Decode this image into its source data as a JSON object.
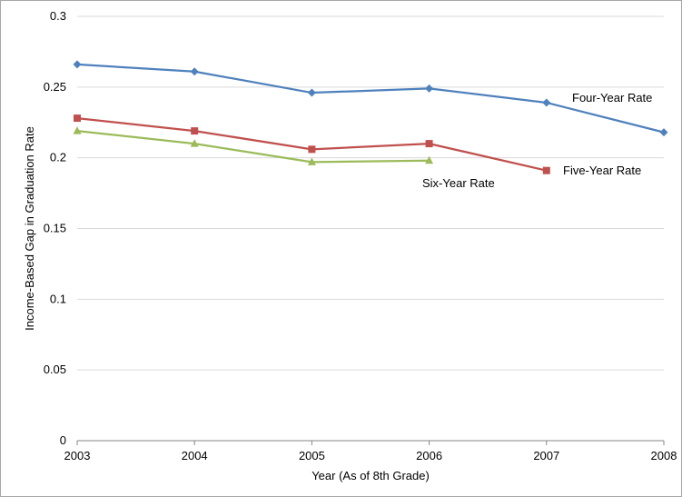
{
  "chart_data": {
    "type": "line",
    "title": "",
    "xlabel": "Year (As of 8th Grade)",
    "ylabel": "Income-Based Gap in Graduation Rate",
    "x": [
      2003,
      2004,
      2005,
      2006,
      2007,
      2008
    ],
    "xlim": [
      2003,
      2008
    ],
    "ylim": [
      0,
      0.3
    ],
    "yticks": [
      "0",
      "0.05",
      "0.1",
      "0.15",
      "0.2",
      "0.25",
      "0.3"
    ],
    "xticks": [
      "2003",
      "2004",
      "2005",
      "2006",
      "2007",
      "2008"
    ],
    "grid": "horizontal",
    "legend": "inline labels",
    "series": [
      {
        "name": "Four-Year Rate",
        "color": "#4f81bd",
        "marker": "diamond",
        "x": [
          2003,
          2004,
          2005,
          2006,
          2007,
          2008
        ],
        "values": [
          0.266,
          0.261,
          0.246,
          0.249,
          0.239,
          0.218
        ]
      },
      {
        "name": "Five-Year Rate",
        "color": "#c0504d",
        "marker": "square",
        "x": [
          2003,
          2004,
          2005,
          2006,
          2007
        ],
        "values": [
          0.228,
          0.219,
          0.206,
          0.21,
          0.191
        ]
      },
      {
        "name": "Six-Year Rate",
        "color": "#9bbb59",
        "marker": "triangle",
        "x": [
          2003,
          2004,
          2005,
          2006
        ],
        "values": [
          0.219,
          0.21,
          0.197,
          0.198
        ]
      }
    ]
  }
}
